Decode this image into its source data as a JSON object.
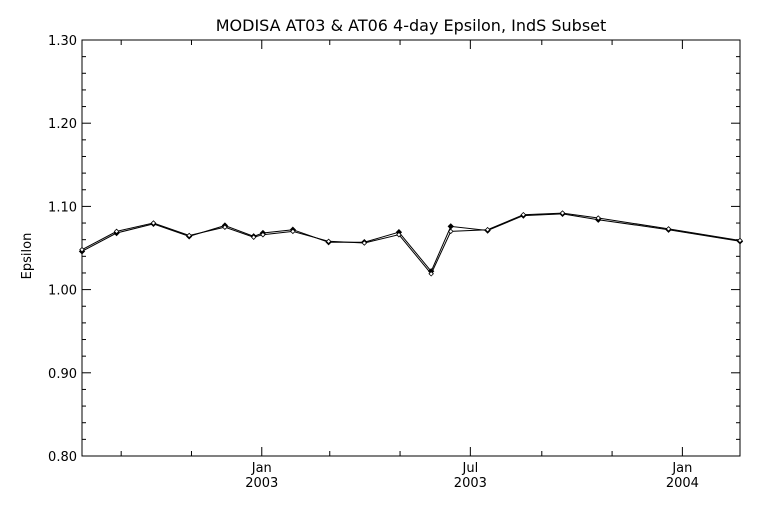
{
  "chart_data": {
    "type": "line",
    "title": "MODISA AT03 & AT06 4-day Epsilon, IndS Subset",
    "xlabel": "",
    "ylabel": "Epsilon",
    "ylim": [
      0.8,
      1.3
    ],
    "xlim": [
      "2002-07-29",
      "2004-02-20"
    ],
    "grid": false,
    "legend": "none",
    "y_ticks": [
      {
        "value": 0.8,
        "label": "0.80"
      },
      {
        "value": 0.9,
        "label": "0.90"
      },
      {
        "value": 1.0,
        "label": "1.00"
      },
      {
        "value": 1.1,
        "label": "1.10"
      },
      {
        "value": 1.2,
        "label": "1.20"
      },
      {
        "value": 1.3,
        "label": "1.30"
      }
    ],
    "x_major_ticks": [
      {
        "date": "2003-01-01",
        "month": "Jan",
        "year": "2003"
      },
      {
        "date": "2003-07-01",
        "month": "Jul",
        "year": "2003"
      },
      {
        "date": "2004-01-01",
        "month": "Jan",
        "year": "2004"
      }
    ],
    "x_minor_ticks": [
      "2002-09-01",
      "2002-11-01",
      "2003-03-01",
      "2003-05-01",
      "2003-09-01",
      "2003-11-01"
    ],
    "series": [
      {
        "color": "#000000",
        "marker": "filled-diamond",
        "points": [
          {
            "x": "2002-07-29",
            "y": 1.046
          },
          {
            "x": "2002-08-28",
            "y": 1.068
          },
          {
            "x": "2002-09-29",
            "y": 1.079
          },
          {
            "x": "2002-10-30",
            "y": 1.064
          },
          {
            "x": "2002-11-30",
            "y": 1.077
          },
          {
            "x": "2002-12-25",
            "y": 1.064
          },
          {
            "x": "2003-01-02",
            "y": 1.068
          },
          {
            "x": "2003-01-28",
            "y": 1.072
          },
          {
            "x": "2003-02-28",
            "y": 1.057
          },
          {
            "x": "2003-03-31",
            "y": 1.057
          },
          {
            "x": "2003-04-30",
            "y": 1.069
          },
          {
            "x": "2003-05-28",
            "y": 1.022
          },
          {
            "x": "2003-06-14",
            "y": 1.076
          },
          {
            "x": "2003-07-16",
            "y": 1.071
          },
          {
            "x": "2003-08-16",
            "y": 1.089
          },
          {
            "x": "2003-09-19",
            "y": 1.091
          },
          {
            "x": "2003-10-20",
            "y": 1.084
          },
          {
            "x": "2003-12-20",
            "y": 1.072
          },
          {
            "x": "2004-02-20",
            "y": 1.058
          }
        ]
      },
      {
        "color": "#000000",
        "marker": "open-diamond",
        "points": [
          {
            "x": "2002-07-29",
            "y": 1.048
          },
          {
            "x": "2002-08-28",
            "y": 1.07
          },
          {
            "x": "2002-09-29",
            "y": 1.08
          },
          {
            "x": "2002-10-30",
            "y": 1.065
          },
          {
            "x": "2002-11-30",
            "y": 1.075
          },
          {
            "x": "2002-12-25",
            "y": 1.063
          },
          {
            "x": "2003-01-02",
            "y": 1.066
          },
          {
            "x": "2003-01-28",
            "y": 1.07
          },
          {
            "x": "2003-02-28",
            "y": 1.058
          },
          {
            "x": "2003-03-31",
            "y": 1.056
          },
          {
            "x": "2003-04-30",
            "y": 1.066
          },
          {
            "x": "2003-05-28",
            "y": 1.019
          },
          {
            "x": "2003-06-14",
            "y": 1.07
          },
          {
            "x": "2003-07-16",
            "y": 1.072
          },
          {
            "x": "2003-08-16",
            "y": 1.09
          },
          {
            "x": "2003-09-19",
            "y": 1.092
          },
          {
            "x": "2003-10-20",
            "y": 1.086
          },
          {
            "x": "2003-12-20",
            "y": 1.073
          },
          {
            "x": "2004-02-20",
            "y": 1.059
          }
        ]
      }
    ]
  }
}
